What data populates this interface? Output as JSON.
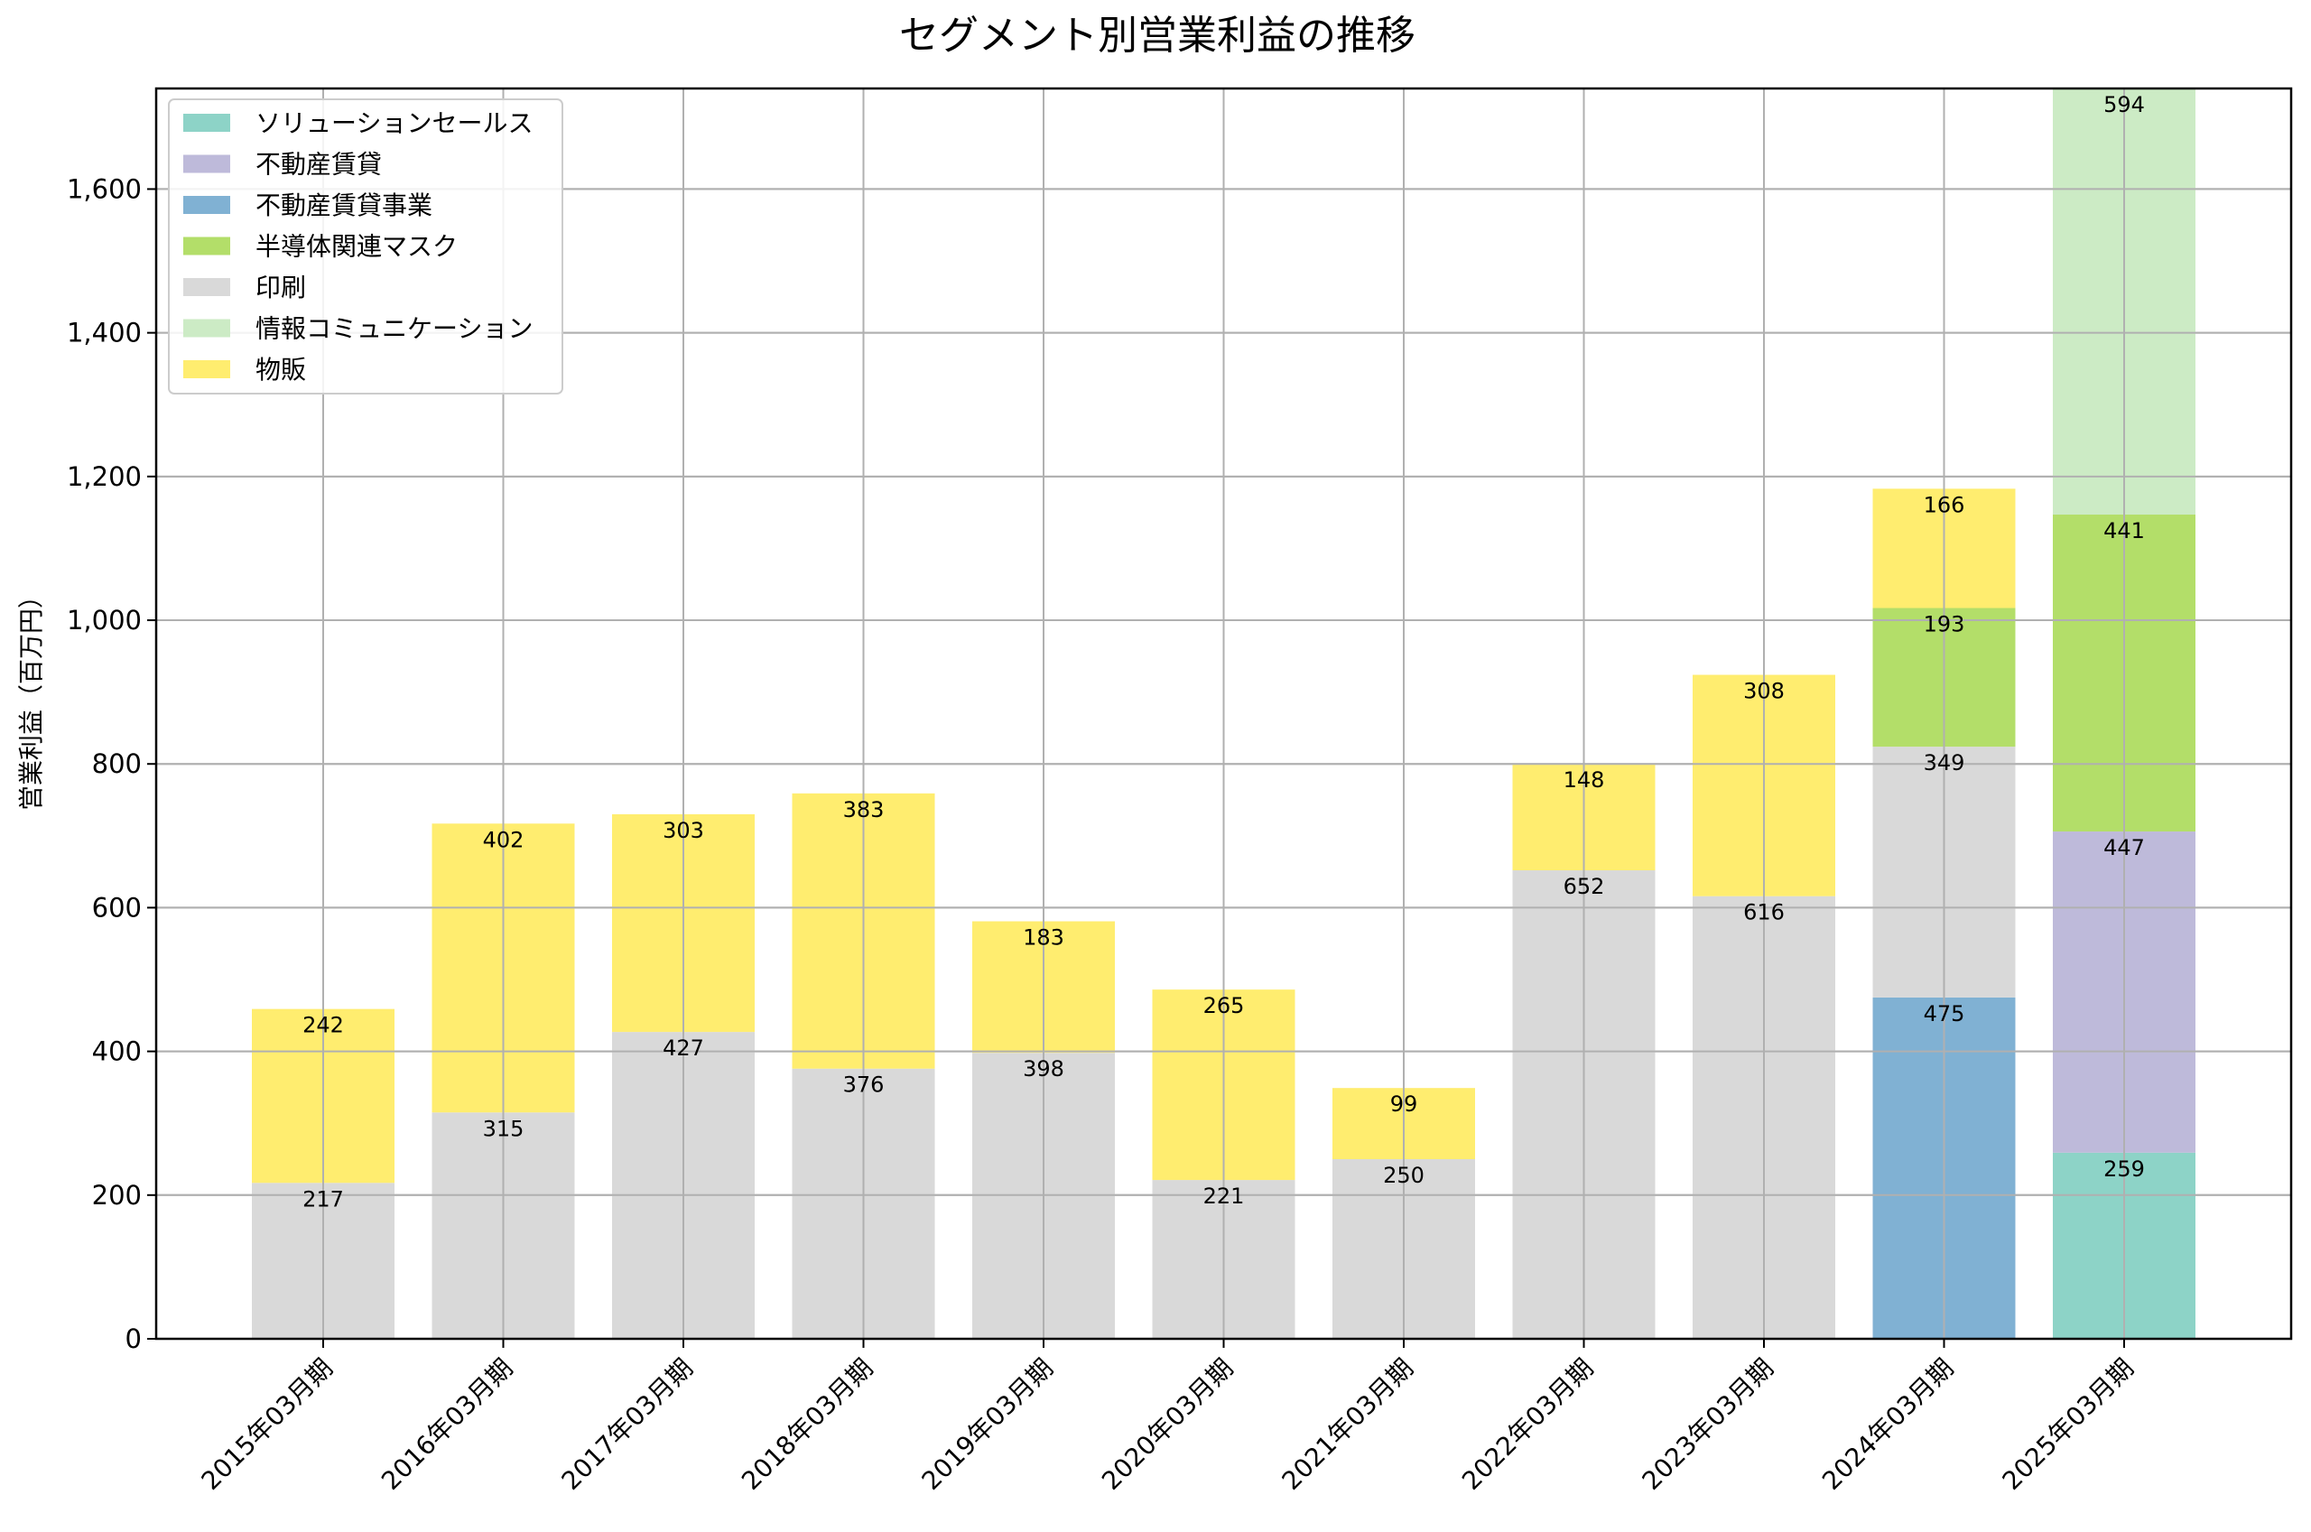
{
  "chart_data": {
    "type": "bar",
    "stacked": true,
    "title": "セグメント別営業利益の推移",
    "xlabel": "",
    "ylabel": "営業利益（百万円）",
    "ylim": [
      0,
      1740
    ],
    "yticks": [
      0,
      200,
      400,
      600,
      800,
      1000,
      1200,
      1400,
      1600
    ],
    "ytick_labels": [
      "0",
      "200",
      "400",
      "600",
      "800",
      "1,000",
      "1,200",
      "1,400",
      "1,600"
    ],
    "grid": true,
    "legend_position": "top-left",
    "categories": [
      "2015年03月期",
      "2016年03月期",
      "2017年03月期",
      "2018年03月期",
      "2019年03月期",
      "2020年03月期",
      "2021年03月期",
      "2022年03月期",
      "2023年03月期",
      "2024年03月期",
      "2025年03月期"
    ],
    "legend_order": [
      "ソリューションセールス",
      "不動産賃貸",
      "不動産賃貸事業",
      "半導体関連マスク",
      "印刷",
      "情報コミュニケーション",
      "物販"
    ],
    "stack_order": [
      "ソリューションセールス",
      "不動産賃貸",
      "不動産賃貸事業",
      "印刷",
      "半導体関連マスク",
      "物販",
      "情報コミュニケーション"
    ],
    "series": [
      {
        "name": "ソリューションセールス",
        "color": "#8dd3c7",
        "values": [
          null,
          null,
          null,
          null,
          null,
          null,
          null,
          null,
          null,
          null,
          259
        ]
      },
      {
        "name": "不動産賃貸",
        "color": "#bebada",
        "values": [
          null,
          null,
          null,
          null,
          null,
          null,
          null,
          null,
          null,
          null,
          447
        ]
      },
      {
        "name": "不動産賃貸事業",
        "color": "#80b1d3",
        "values": [
          null,
          null,
          null,
          null,
          null,
          null,
          null,
          null,
          null,
          475,
          null
        ]
      },
      {
        "name": "半導体関連マスク",
        "color": "#b3de69",
        "values": [
          null,
          null,
          null,
          null,
          null,
          null,
          null,
          null,
          null,
          193,
          441
        ]
      },
      {
        "name": "印刷",
        "color": "#d9d9d9",
        "values": [
          217,
          315,
          427,
          376,
          398,
          221,
          250,
          652,
          616,
          349,
          null
        ]
      },
      {
        "name": "情報コミュニケーション",
        "color": "#ccebc5",
        "values": [
          null,
          null,
          null,
          null,
          null,
          null,
          null,
          null,
          null,
          null,
          594
        ]
      },
      {
        "name": "物販",
        "color": "#ffed6f",
        "values": [
          242,
          402,
          303,
          383,
          183,
          265,
          99,
          148,
          308,
          166,
          null
        ]
      }
    ]
  }
}
